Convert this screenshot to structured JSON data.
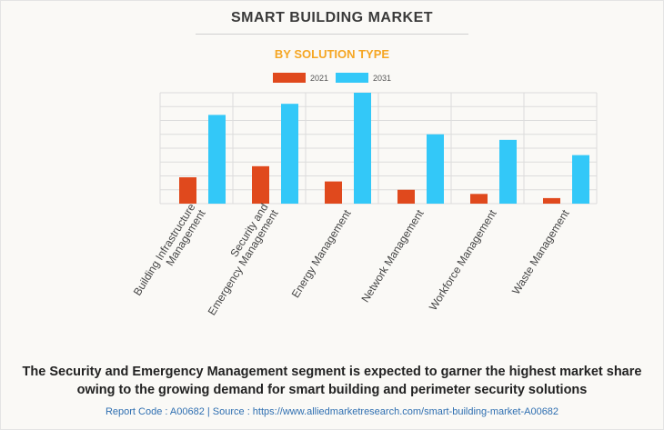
{
  "header": {
    "title": "SMART BUILDING MARKET",
    "subtitle": "BY SOLUTION TYPE"
  },
  "colors": {
    "series_2021": "#e0491d",
    "series_2031": "#33c8f8",
    "subtitle": "#f5a623",
    "gridline": "#dcdcdc"
  },
  "chart_data": {
    "type": "bar",
    "title": "SMART BUILDING MARKET",
    "subtitle": "BY SOLUTION TYPE",
    "categories": [
      "Building Infrastructure Management",
      "Security and Emergency Management",
      "Energy Management",
      "Network Management",
      "Workforce Management",
      "Waste Management"
    ],
    "category_lines": [
      [
        "Building Infrastructure",
        "Management"
      ],
      [
        "Security and",
        "Emergency Management"
      ],
      [
        "Energy Management"
      ],
      [
        "Network Management"
      ],
      [
        "Workforce Management"
      ],
      [
        "Waste Management"
      ]
    ],
    "series": [
      {
        "name": "2021",
        "values": [
          19,
          27,
          16,
          10,
          7,
          4
        ]
      },
      {
        "name": "2031",
        "values": [
          64,
          72,
          80,
          50,
          46,
          35
        ]
      }
    ],
    "ylim": [
      0,
      80
    ],
    "y_gridlines": 8,
    "grid": true,
    "legend_position": "top-center",
    "xlabel": "",
    "ylabel": ""
  },
  "footer": {
    "summary": "The Security and Emergency Management segment is expected to garner the highest market share owing to the growing demand for smart building and perimeter security solutions",
    "report_line": "Report Code : A00682  |  Source : https://www.alliedmarketresearch.com/smart-building-market-A00682"
  }
}
